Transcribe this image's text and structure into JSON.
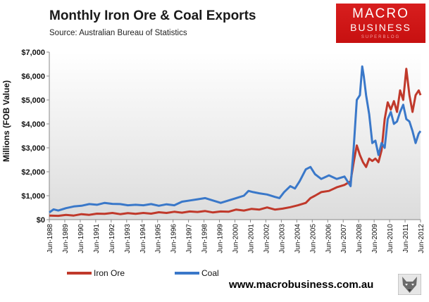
{
  "header": {
    "title": "Monthly  Iron Ore & Coal Exports",
    "source": "Source:  Australian Bureau of Statistics"
  },
  "logo": {
    "line1": "MACRO",
    "line2": "BUSINESS",
    "line3": "SUPERBLOG"
  },
  "footer": {
    "website": "www.macrobusiness.com.au"
  },
  "colors": {
    "iron_ore": "#c0392b",
    "coal": "#3a78c9",
    "plot_bg_top": "#ffffff",
    "plot_bg_bottom": "#dcdcdc"
  },
  "chart_data": {
    "type": "line",
    "title": "Monthly  Iron Ore & Coal Exports",
    "ylabel": "Millions (FOB Value)",
    "xlabel": "",
    "ylim": [
      0,
      7000
    ],
    "yticks": [
      "$0",
      "$1,000",
      "$2,000",
      "$3,000",
      "$4,000",
      "$5,000",
      "$6,000",
      "$7,000"
    ],
    "xlim": [
      1988.42,
      2012.42
    ],
    "xticks": [
      "Jun-1988",
      "Jun-1989",
      "Jun-1990",
      "Jun-1991",
      "Jun-1992",
      "Jun-1993",
      "Jun-1994",
      "Jun-1995",
      "Jun-1996",
      "Jun-1997",
      "Jun-1998",
      "Jun-1999",
      "Jun-2000",
      "Jun-2001",
      "Jun-2002",
      "Jun-2003",
      "Jun-2004",
      "Jun-2005",
      "Jun-2006",
      "Jun-2007",
      "Jun-2008",
      "Jun-2009",
      "Jun-2010",
      "Jun-2011",
      "Jun-2012"
    ],
    "grid": false,
    "legend": "bottom-left",
    "series": [
      {
        "name": "Iron Ore",
        "color": "#c0392b",
        "x": [
          1988.42,
          1989.0,
          1989.5,
          1990.0,
          1990.5,
          1991.0,
          1991.5,
          1992.0,
          1992.5,
          1993.0,
          1993.5,
          1994.0,
          1994.5,
          1995.0,
          1995.5,
          1996.0,
          1996.5,
          1997.0,
          1997.5,
          1998.0,
          1998.5,
          1999.0,
          1999.5,
          2000.0,
          2000.5,
          2001.0,
          2001.5,
          2002.0,
          2002.5,
          2003.0,
          2003.5,
          2004.0,
          2004.5,
          2005.0,
          2005.3,
          2005.6,
          2006.0,
          2006.5,
          2007.0,
          2007.5,
          2007.9,
          2008.1,
          2008.3,
          2008.5,
          2008.7,
          2008.9,
          2009.1,
          2009.3,
          2009.5,
          2009.7,
          2009.9,
          2010.1,
          2010.3,
          2010.5,
          2010.7,
          2010.9,
          2011.1,
          2011.3,
          2011.5,
          2011.7,
          2011.9,
          2012.1,
          2012.3,
          2012.42
        ],
        "values": [
          170,
          160,
          200,
          170,
          230,
          200,
          250,
          240,
          280,
          230,
          270,
          240,
          280,
          250,
          310,
          280,
          330,
          290,
          340,
          320,
          360,
          300,
          340,
          330,
          420,
          380,
          450,
          420,
          510,
          420,
          460,
          520,
          600,
          700,
          900,
          1000,
          1150,
          1200,
          1350,
          1450,
          1600,
          2400,
          3100,
          2700,
          2400,
          2200,
          2550,
          2450,
          2550,
          2400,
          2900,
          4200,
          4900,
          4600,
          4950,
          4500,
          5400,
          5000,
          6300,
          5200,
          4500,
          5200,
          5400,
          5200
        ]
      },
      {
        "name": "Coal",
        "color": "#3a78c9",
        "x": [
          1988.42,
          1988.7,
          1989.0,
          1989.5,
          1990.0,
          1990.5,
          1991.0,
          1991.5,
          1992.0,
          1992.5,
          1993.0,
          1993.5,
          1994.0,
          1994.5,
          1995.0,
          1995.5,
          1996.0,
          1996.5,
          1997.0,
          1997.5,
          1998.0,
          1998.5,
          1999.0,
          1999.5,
          2000.0,
          2000.5,
          2001.0,
          2001.3,
          2001.6,
          2002.0,
          2002.5,
          2003.0,
          2003.3,
          2003.6,
          2004.0,
          2004.3,
          2004.6,
          2005.0,
          2005.3,
          2005.6,
          2006.0,
          2006.5,
          2007.0,
          2007.5,
          2007.9,
          2008.1,
          2008.3,
          2008.5,
          2008.65,
          2008.75,
          2008.9,
          2009.1,
          2009.3,
          2009.5,
          2009.7,
          2009.9,
          2010.1,
          2010.3,
          2010.5,
          2010.7,
          2010.9,
          2011.1,
          2011.3,
          2011.5,
          2011.7,
          2011.9,
          2012.1,
          2012.3,
          2012.42
        ],
        "values": [
          300,
          430,
          380,
          480,
          550,
          580,
          650,
          620,
          700,
          660,
          650,
          600,
          620,
          600,
          650,
          580,
          640,
          600,
          750,
          800,
          850,
          900,
          800,
          700,
          800,
          900,
          1000,
          1200,
          1150,
          1100,
          1050,
          950,
          900,
          1150,
          1400,
          1300,
          1600,
          2100,
          2200,
          1900,
          1700,
          1850,
          1700,
          1800,
          1400,
          3000,
          5000,
          5200,
          6400,
          6000,
          5200,
          4400,
          3200,
          3300,
          2700,
          3200,
          3000,
          4200,
          4500,
          4000,
          4100,
          4500,
          4800,
          4200,
          4100,
          3700,
          3200,
          3600,
          3700
        ]
      }
    ]
  }
}
